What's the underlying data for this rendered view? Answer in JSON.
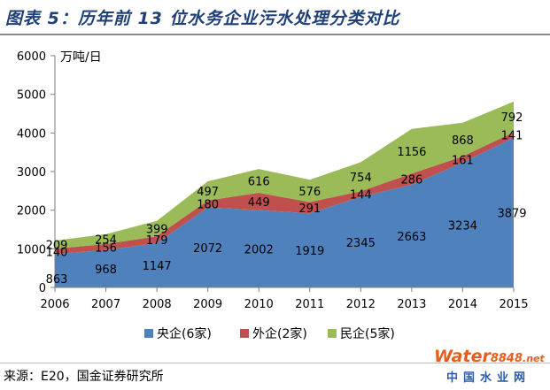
{
  "title": "图表 5：历年前 13 位水务企业污水处理分类对比",
  "source": "来源：E20，国金证券研究所",
  "logo": {
    "main": "Water8848",
    "cn": "中国水业网"
  },
  "colors": {
    "title": "#1f3f77",
    "central": "#4f81bd",
    "foreign": "#c0504d",
    "private": "#9bbb59"
  },
  "chart_data": {
    "type": "area",
    "stacked": true,
    "ylabel": "万吨/日",
    "xlabel": "",
    "title": "",
    "x": [
      "2006",
      "2007",
      "2008",
      "2009",
      "2010",
      "2011",
      "2012",
      "2013",
      "2014",
      "2015"
    ],
    "ylim": [
      0,
      6000
    ],
    "yticks": [
      0,
      1000,
      2000,
      3000,
      4000,
      5000,
      6000
    ],
    "grid": false,
    "legend": "bottom",
    "series": [
      {
        "name": "央企(6家)",
        "color": "#4f81bd",
        "values": [
          863,
          968,
          1147,
          2072,
          2002,
          1919,
          2345,
          2663,
          3234,
          3879
        ]
      },
      {
        "name": "外企(2家)",
        "color": "#c0504d",
        "values": [
          140,
          156,
          179,
          180,
          449,
          291,
          144,
          286,
          161,
          141
        ]
      },
      {
        "name": "民企(5家)",
        "color": "#9bbb59",
        "values": [
          209,
          254,
          399,
          497,
          616,
          576,
          754,
          1156,
          868,
          792
        ]
      }
    ]
  }
}
